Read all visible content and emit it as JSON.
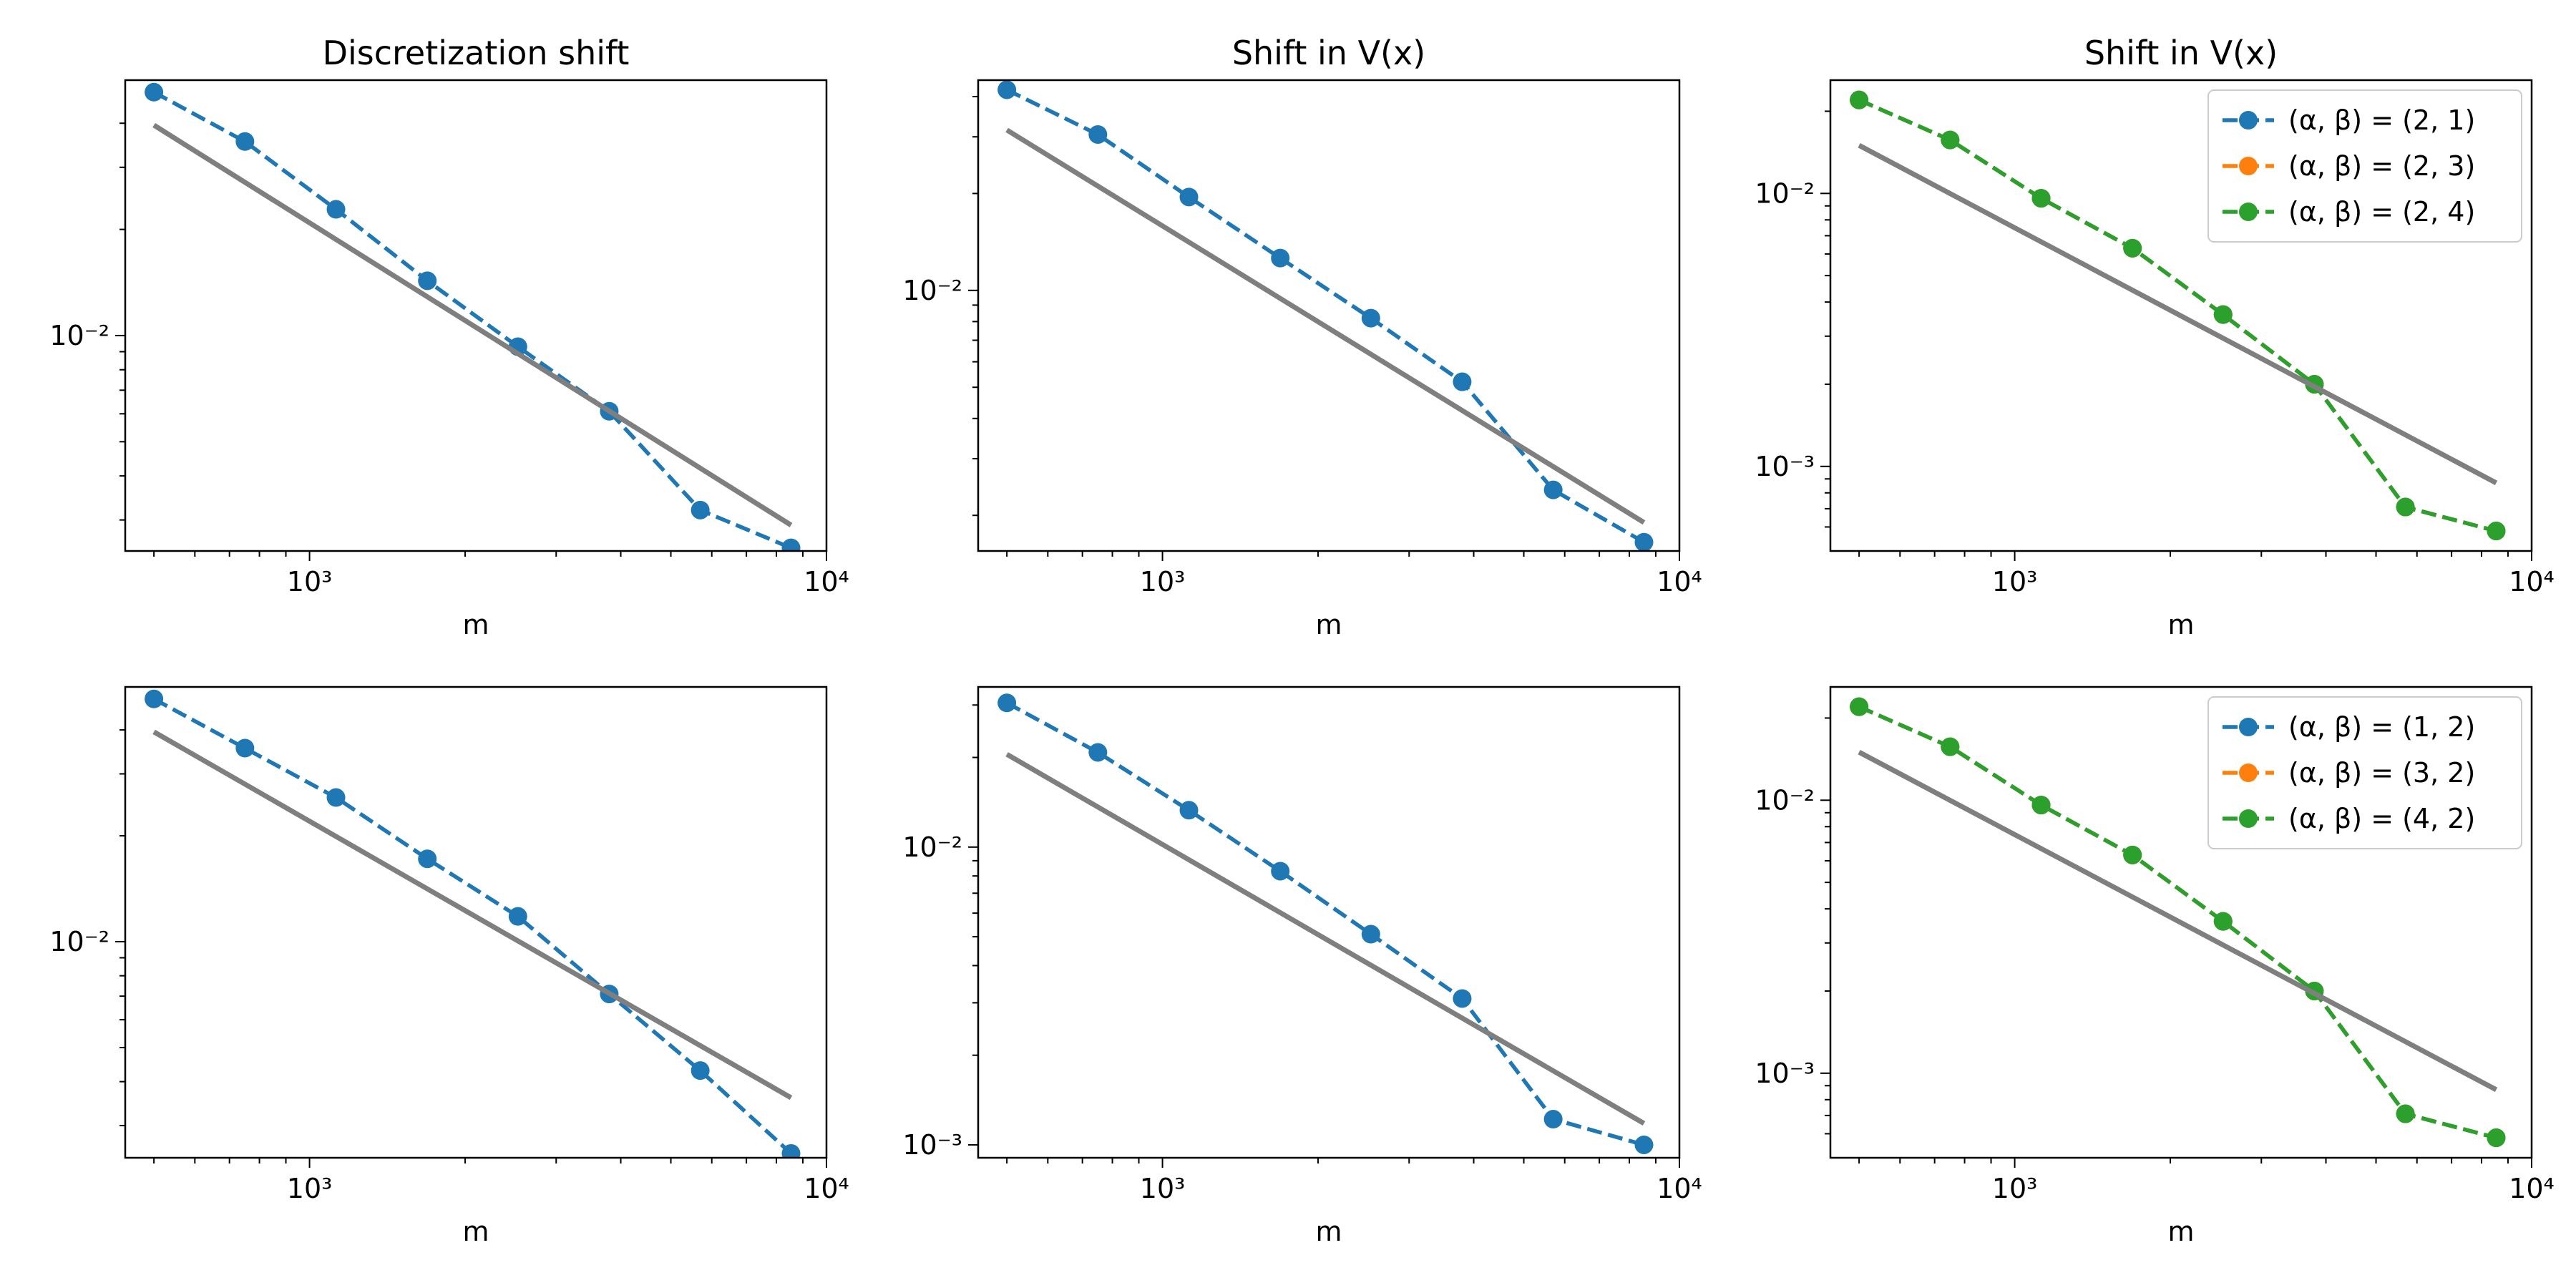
{
  "figure": {
    "colors": {
      "blue": "#1f77b4",
      "orange": "#ff7f0e",
      "green": "#2ca02c",
      "reference": "#7f7f7f"
    }
  },
  "chart_data": [
    {
      "type": "line",
      "xscale": "log",
      "yscale": "log",
      "title": "Discretization shift",
      "xlabel": "m",
      "ylabel": "",
      "xlim": [
        440,
        10000
      ],
      "ylim": [
        0.00245,
        0.053
      ],
      "xticks": [
        {
          "value": 1000,
          "label": "10³"
        },
        {
          "value": 10000,
          "label": "10⁴"
        }
      ],
      "yticks": [
        {
          "value": 0.01,
          "label": "10⁻²"
        }
      ],
      "yminor": [
        0.003,
        0.004,
        0.005,
        0.006,
        0.007,
        0.008,
        0.009,
        0.02,
        0.03,
        0.04
      ],
      "series": [
        {
          "color": "#1f77b4",
          "style": "dashed-marker",
          "x": [
            500,
            750,
            1125,
            1690,
            2530,
            3800,
            5700,
            8540
          ],
          "y": [
            0.049,
            0.0355,
            0.0228,
            0.0143,
            0.0093,
            0.0061,
            0.0032,
            0.0025
          ]
        },
        {
          "color": "#7f7f7f",
          "style": "solid",
          "x": [
            500,
            8540
          ],
          "y": [
            0.0395,
            0.0029
          ]
        }
      ],
      "legend": null
    },
    {
      "type": "line",
      "xscale": "log",
      "yscale": "log",
      "title": "Shift in V(x)",
      "xlabel": "m",
      "ylabel": "",
      "xlim": [
        440,
        10000
      ],
      "ylim": [
        0.00155,
        0.045
      ],
      "xticks": [
        {
          "value": 1000,
          "label": "10³"
        },
        {
          "value": 10000,
          "label": "10⁴"
        }
      ],
      "yticks": [
        {
          "value": 0.01,
          "label": "10⁻²"
        }
      ],
      "yminor": [
        0.002,
        0.003,
        0.004,
        0.005,
        0.006,
        0.007,
        0.008,
        0.009,
        0.02,
        0.03,
        0.04
      ],
      "series": [
        {
          "color": "#1f77b4",
          "style": "dashed-marker",
          "x": [
            500,
            750,
            1125,
            1690,
            2530,
            3800,
            5700,
            8540
          ],
          "y": [
            0.042,
            0.0305,
            0.0195,
            0.0126,
            0.0082,
            0.0052,
            0.0024,
            0.00165
          ]
        },
        {
          "color": "#7f7f7f",
          "style": "solid",
          "x": [
            500,
            8540
          ],
          "y": [
            0.0315,
            0.0019
          ]
        }
      ],
      "legend": null
    },
    {
      "type": "line",
      "xscale": "log",
      "yscale": "log",
      "title": "Shift in V(x)",
      "xlabel": "m",
      "ylabel": "",
      "xlim": [
        440,
        10000
      ],
      "ylim": [
        0.00049,
        0.026
      ],
      "xticks": [
        {
          "value": 1000,
          "label": "10³"
        },
        {
          "value": 10000,
          "label": "10⁴"
        }
      ],
      "yticks": [
        {
          "value": 0.001,
          "label": "10⁻³"
        },
        {
          "value": 0.01,
          "label": "10⁻²"
        }
      ],
      "yminor": [
        0.0006,
        0.0007,
        0.0008,
        0.0009,
        0.002,
        0.003,
        0.004,
        0.005,
        0.006,
        0.007,
        0.008,
        0.009,
        0.02
      ],
      "series": [
        {
          "name": "(α, β) = (2, 1)",
          "color": "#1f77b4",
          "style": "dashed-marker",
          "x": [
            500,
            750,
            1125,
            1690,
            2530,
            3800,
            5700,
            8540
          ],
          "y": [
            0.022,
            0.0157,
            0.0096,
            0.0063,
            0.0036,
            0.002,
            0.00071,
            0.00058
          ]
        },
        {
          "name": "(α, β) = (2, 3)",
          "color": "#ff7f0e",
          "style": "dashed-marker",
          "x": [
            500,
            750,
            1125,
            1690,
            2530,
            3800,
            5700,
            8540
          ],
          "y": [
            0.022,
            0.0157,
            0.0096,
            0.0063,
            0.0036,
            0.002,
            0.00071,
            0.00058
          ]
        },
        {
          "name": "(α, β) = (2, 4)",
          "color": "#2ca02c",
          "style": "dashed-marker",
          "x": [
            500,
            750,
            1125,
            1690,
            2530,
            3800,
            5700,
            8540
          ],
          "y": [
            0.022,
            0.0157,
            0.0096,
            0.0063,
            0.0036,
            0.002,
            0.00071,
            0.00058
          ]
        },
        {
          "color": "#7f7f7f",
          "style": "solid",
          "x": [
            500,
            8540
          ],
          "y": [
            0.015,
            0.00087
          ]
        }
      ],
      "legend": "top-right"
    },
    {
      "type": "line",
      "xscale": "log",
      "yscale": "log",
      "title": "",
      "xlabel": "m",
      "ylabel": "",
      "xlim": [
        440,
        10000
      ],
      "ylim": [
        0.00243,
        0.053
      ],
      "xticks": [
        {
          "value": 1000,
          "label": "10³"
        },
        {
          "value": 10000,
          "label": "10⁴"
        }
      ],
      "yticks": [
        {
          "value": 0.01,
          "label": "10⁻²"
        }
      ],
      "yminor": [
        0.003,
        0.004,
        0.005,
        0.006,
        0.007,
        0.008,
        0.009,
        0.02,
        0.03,
        0.04
      ],
      "series": [
        {
          "color": "#1f77b4",
          "style": "dashed-marker",
          "x": [
            500,
            750,
            1125,
            1690,
            2530,
            3800,
            5700,
            8540
          ],
          "y": [
            0.049,
            0.0355,
            0.0257,
            0.0172,
            0.0118,
            0.0071,
            0.0043,
            0.0025
          ]
        },
        {
          "color": "#7f7f7f",
          "style": "solid",
          "x": [
            500,
            8540
          ],
          "y": [
            0.0395,
            0.0036
          ]
        }
      ],
      "legend": null
    },
    {
      "type": "line",
      "xscale": "log",
      "yscale": "log",
      "title": "",
      "xlabel": "m",
      "ylabel": "",
      "xlim": [
        440,
        10000
      ],
      "ylim": [
        0.000905,
        0.0345
      ],
      "xticks": [
        {
          "value": 1000,
          "label": "10³"
        },
        {
          "value": 10000,
          "label": "10⁴"
        }
      ],
      "yticks": [
        {
          "value": 0.001,
          "label": "10⁻³"
        },
        {
          "value": 0.01,
          "label": "10⁻²"
        }
      ],
      "yminor": [
        0.002,
        0.003,
        0.004,
        0.005,
        0.006,
        0.007,
        0.008,
        0.009,
        0.02,
        0.03
      ],
      "series": [
        {
          "color": "#1f77b4",
          "style": "dashed-marker",
          "x": [
            500,
            750,
            1125,
            1690,
            2530,
            3800,
            5700,
            8540
          ],
          "y": [
            0.0305,
            0.0208,
            0.0133,
            0.0083,
            0.0051,
            0.0031,
            0.00122,
            0.001
          ]
        },
        {
          "color": "#7f7f7f",
          "style": "solid",
          "x": [
            500,
            8540
          ],
          "y": [
            0.0205,
            0.00118
          ]
        }
      ],
      "legend": null
    },
    {
      "type": "line",
      "xscale": "log",
      "yscale": "log",
      "title": "",
      "xlabel": "m",
      "ylabel": "",
      "xlim": [
        440,
        10000
      ],
      "ylim": [
        0.00049,
        0.026
      ],
      "xticks": [
        {
          "value": 1000,
          "label": "10³"
        },
        {
          "value": 10000,
          "label": "10⁴"
        }
      ],
      "yticks": [
        {
          "value": 0.001,
          "label": "10⁻³"
        },
        {
          "value": 0.01,
          "label": "10⁻²"
        }
      ],
      "yminor": [
        0.0006,
        0.0007,
        0.0008,
        0.0009,
        0.002,
        0.003,
        0.004,
        0.005,
        0.006,
        0.007,
        0.008,
        0.009,
        0.02
      ],
      "series": [
        {
          "name": "(α, β) = (1, 2)",
          "color": "#1f77b4",
          "style": "dashed-marker",
          "x": [
            500,
            750,
            1125,
            1690,
            2530,
            3800,
            5700,
            8540
          ],
          "y": [
            0.022,
            0.0157,
            0.0096,
            0.0063,
            0.0036,
            0.002,
            0.00071,
            0.00058
          ]
        },
        {
          "name": "(α, β) = (3, 2)",
          "color": "#ff7f0e",
          "style": "dashed-marker",
          "x": [
            500,
            750,
            1125,
            1690,
            2530,
            3800,
            5700,
            8540
          ],
          "y": [
            0.022,
            0.0157,
            0.0096,
            0.0063,
            0.0036,
            0.002,
            0.00071,
            0.00058
          ]
        },
        {
          "name": "(α, β) = (4, 2)",
          "color": "#2ca02c",
          "style": "dashed-marker",
          "x": [
            500,
            750,
            1125,
            1690,
            2530,
            3800,
            5700,
            8540
          ],
          "y": [
            0.022,
            0.0157,
            0.0096,
            0.0063,
            0.0036,
            0.002,
            0.00071,
            0.00058
          ]
        },
        {
          "color": "#7f7f7f",
          "style": "solid",
          "x": [
            500,
            8540
          ],
          "y": [
            0.015,
            0.00087
          ]
        }
      ],
      "legend": "top-right"
    }
  ]
}
